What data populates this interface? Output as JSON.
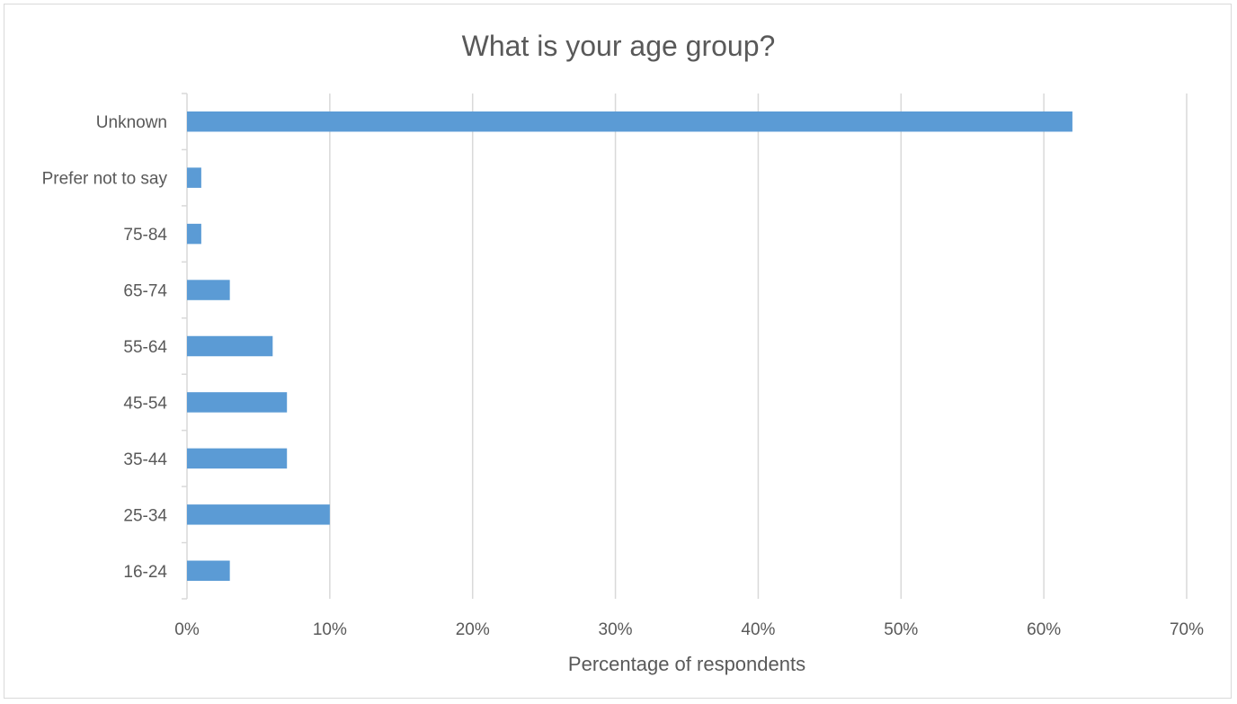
{
  "chart_data": {
    "type": "bar",
    "orientation": "horizontal",
    "title": "What is your age group?",
    "xlabel": "Percentage of respondents",
    "ylabel": "",
    "categories": [
      "16-24",
      "25-34",
      "35-44",
      "45-54",
      "55-64",
      "65-74",
      "75-84",
      "Prefer not to say",
      "Unknown"
    ],
    "values": [
      3,
      10,
      7,
      7,
      6,
      3,
      1,
      1,
      62
    ],
    "xlim": [
      0,
      70
    ],
    "x_ticks": [
      0,
      10,
      20,
      30,
      40,
      50,
      60,
      70
    ],
    "x_tick_labels": [
      "0%",
      "10%",
      "20%",
      "30%",
      "40%",
      "50%",
      "60%",
      "70%"
    ],
    "grid": "vertical",
    "legend": "none",
    "bar_color": "#5B9BD5",
    "grid_color": "#D9D9D9"
  }
}
